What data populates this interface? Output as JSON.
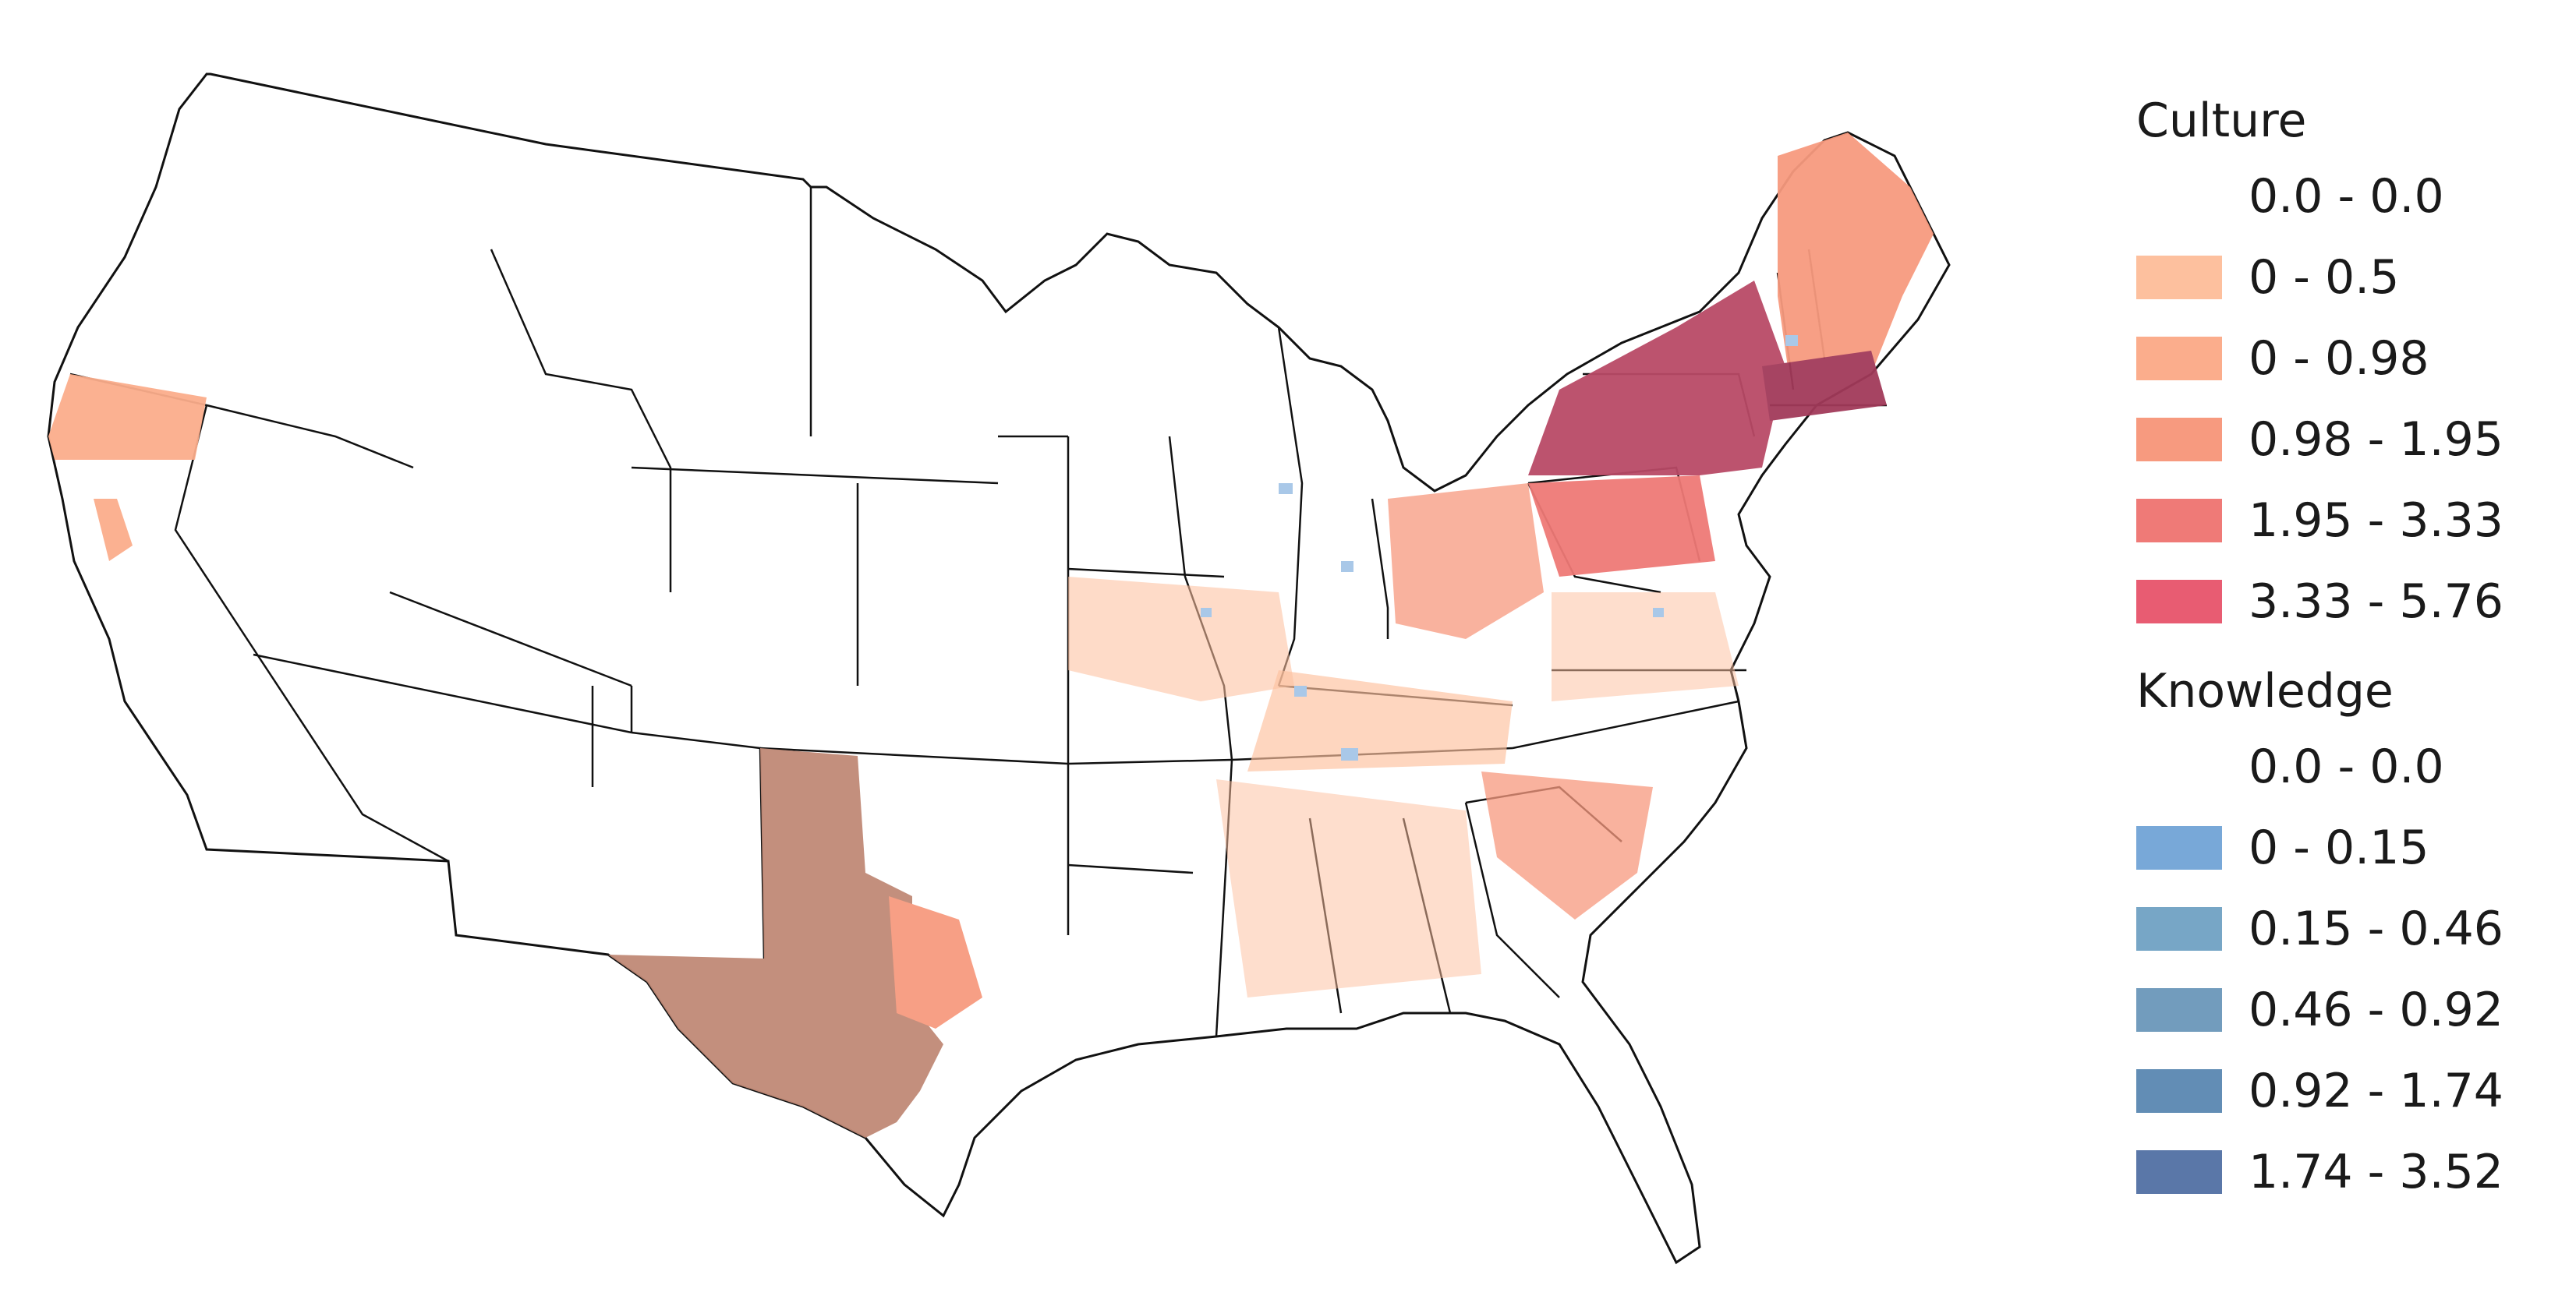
{
  "legend": {
    "culture": {
      "title": "Culture",
      "classes": [
        {
          "label": "0.0 - 0.0",
          "color": "#ffffff"
        },
        {
          "label": "0 - 0.5",
          "color": "#fdc09e"
        },
        {
          "label": "0 - 0.98",
          "color": "#fbad8c"
        },
        {
          "label": "0.98 - 1.95",
          "color": "#f79a7f"
        },
        {
          "label": "1.95 - 3.33",
          "color": "#ef7a77"
        },
        {
          "label": "3.33 - 5.76",
          "color": "#e85c72"
        }
      ]
    },
    "knowledge": {
      "title": "Knowledge",
      "classes": [
        {
          "label": "0.0 - 0.0",
          "color": "#ffffff"
        },
        {
          "label": "0 - 0.15",
          "color": "#78a8d8"
        },
        {
          "label": "0.15 - 0.46",
          "color": "#77a6c6"
        },
        {
          "label": "0.46 - 0.92",
          "color": "#729cbd"
        },
        {
          "label": "0.92 - 1.74",
          "color": "#628db5"
        },
        {
          "label": "1.74 - 3.52",
          "color": "#5a77a8"
        }
      ]
    }
  },
  "map": {
    "region": "contiguous-united-states",
    "colors": {
      "outline": "#111111",
      "land": "#ffffff",
      "texas_overlap": "#c08a76",
      "northeast_overlap": "#b94a67",
      "northeast_dark": "#a23a5a"
    }
  }
}
